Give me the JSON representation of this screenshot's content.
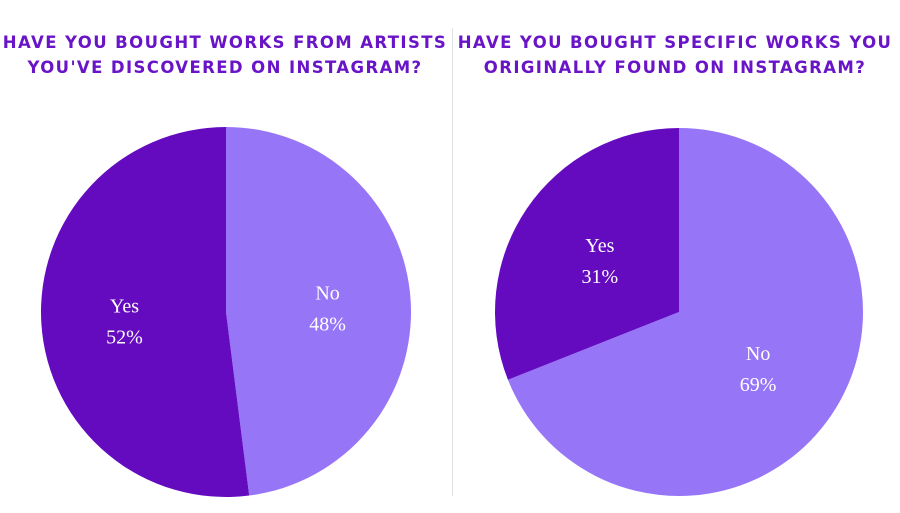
{
  "colors": {
    "title": "#6a14c8",
    "yes": "#650bbf",
    "no": "#9775f7",
    "label": "#ffffff"
  },
  "chart_data": [
    {
      "type": "pie",
      "title_lines": [
        "HAVE YOU BOUGHT WORKS FROM ARTISTS",
        "YOU'VE DISCOVERED ON INSTAGRAM?"
      ],
      "slices": [
        {
          "label": "Yes",
          "value": 52,
          "value_label": "52%",
          "color": "#650bbf"
        },
        {
          "label": "No",
          "value": 48,
          "value_label": "48%",
          "color": "#9775f7"
        }
      ]
    },
    {
      "type": "pie",
      "title_lines": [
        "HAVE YOU BOUGHT SPECIFIC WORKS YOU",
        "ORIGINALLY FOUND ON INSTAGRAM?"
      ],
      "slices": [
        {
          "label": "Yes",
          "value": 31,
          "value_label": "31%",
          "color": "#650bbf"
        },
        {
          "label": "No",
          "value": 69,
          "value_label": "69%",
          "color": "#9775f7"
        }
      ]
    }
  ]
}
